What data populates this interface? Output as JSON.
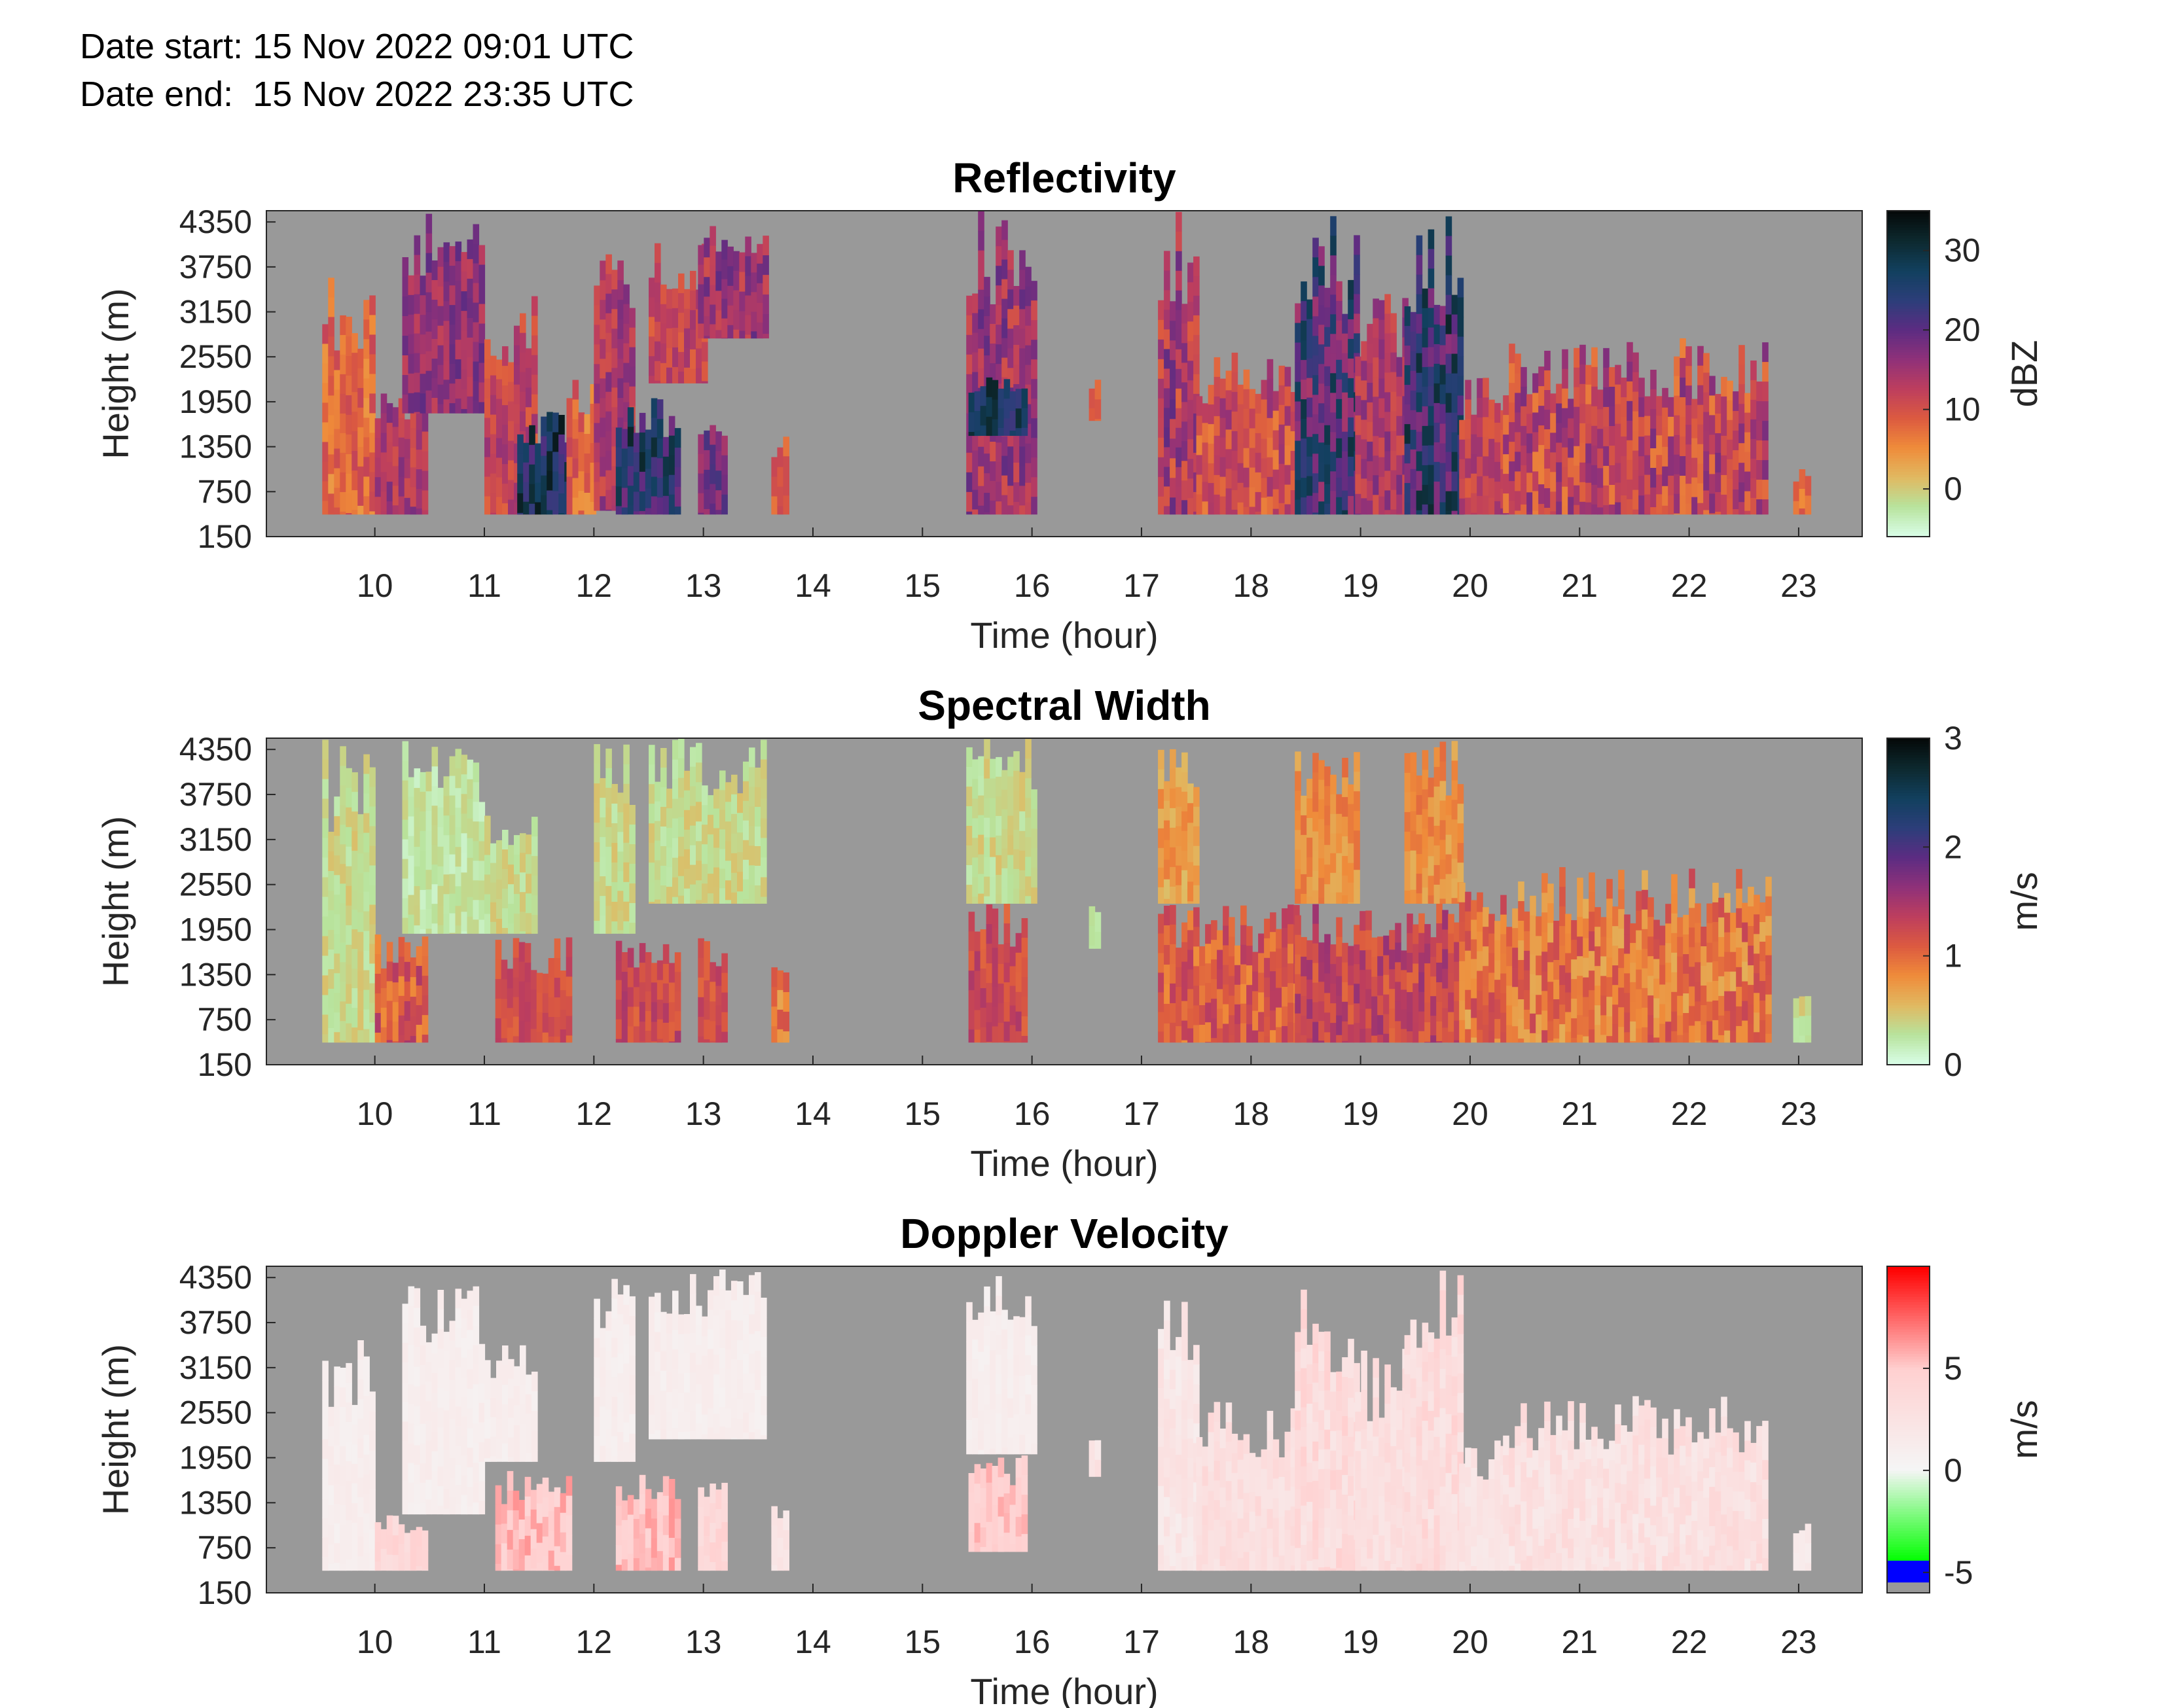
{
  "header": {
    "start_label": "Date start:",
    "start_value": "15 Nov 2022 09:01 UTC",
    "end_label": "Date end:",
    "end_value": "15 Nov 2022 23:35 UTC"
  },
  "colors": {
    "no_data": "#999999",
    "reflectivity_cmap": [
      "#d8fde6",
      "#b8e39c",
      "#e1b860",
      "#ef8b3a",
      "#dc5a40",
      "#bd3e5e",
      "#8f3179",
      "#5c2c82",
      "#2c3e7a",
      "#12405f",
      "#0d2a30",
      "#050a0a"
    ],
    "width_cmap": [
      "#d8fde6",
      "#b8e39c",
      "#e1b860",
      "#ef8b3a",
      "#dc5a40",
      "#bd3e5e",
      "#8f3179",
      "#5c2c82",
      "#2c3e7a",
      "#12405f",
      "#0d2a30",
      "#050a0a"
    ],
    "velocity_cmap": [
      "#999999",
      "#0000ff",
      "#00ff00",
      "#f5f5f5",
      "#ffd0d0",
      "#ff0000"
    ]
  },
  "chart_data": [
    {
      "type": "heatmap",
      "title": "Reflectivity",
      "xlabel": "Time (hour)",
      "ylabel": "Height (m)",
      "colorbar_label": "dBZ",
      "colorbar_ticks": [
        0,
        10,
        20,
        30
      ],
      "clim": [
        -6,
        35
      ],
      "xlim": [
        9.01,
        23.58
      ],
      "ylim": [
        150,
        4500
      ],
      "xticks": [
        10,
        11,
        12,
        13,
        14,
        15,
        16,
        17,
        18,
        19,
        20,
        21,
        22,
        23
      ],
      "yticks": [
        150,
        750,
        1350,
        1950,
        2550,
        3150,
        3750,
        4350
      ],
      "echo_blocks": [
        {
          "t": [
            9.52,
            9.98
          ],
          "h": [
            450,
            3700
          ],
          "v": [
            4,
            12
          ]
        },
        {
          "t": [
            10.0,
            10.45
          ],
          "h": [
            450,
            2100
          ],
          "v": [
            10,
            18
          ]
        },
        {
          "t": [
            10.25,
            11.0
          ],
          "h": [
            1800,
            4500
          ],
          "v": [
            12,
            20
          ]
        },
        {
          "t": [
            11.0,
            11.45
          ],
          "h": [
            450,
            3500
          ],
          "v": [
            8,
            16
          ]
        },
        {
          "t": [
            11.3,
            11.75
          ],
          "h": [
            450,
            1850
          ],
          "v": [
            20,
            35
          ]
        },
        {
          "t": [
            11.75,
            12.0
          ],
          "h": [
            450,
            2500
          ],
          "v": [
            4,
            12
          ]
        },
        {
          "t": [
            12.0,
            12.35
          ],
          "h": [
            500,
            4500
          ],
          "v": [
            10,
            18
          ]
        },
        {
          "t": [
            12.2,
            12.75
          ],
          "h": [
            450,
            2000
          ],
          "v": [
            18,
            32
          ]
        },
        {
          "t": [
            12.5,
            13.0
          ],
          "h": [
            2200,
            4100
          ],
          "v": [
            8,
            15
          ]
        },
        {
          "t": [
            12.95,
            13.2
          ],
          "h": [
            450,
            1900
          ],
          "v": [
            14,
            22
          ]
        },
        {
          "t": [
            12.95,
            13.55
          ],
          "h": [
            2800,
            4500
          ],
          "v": [
            10,
            20
          ]
        },
        {
          "t": [
            13.62,
            13.78
          ],
          "h": [
            450,
            1500
          ],
          "v": [
            6,
            12
          ]
        },
        {
          "t": [
            15.4,
            16.0
          ],
          "h": [
            450,
            4500
          ],
          "v": [
            10,
            20
          ]
        },
        {
          "t": [
            15.42,
            15.95
          ],
          "h": [
            1500,
            2300
          ],
          "v": [
            22,
            32
          ]
        },
        {
          "t": [
            16.52,
            16.58
          ],
          "h": [
            1700,
            2300
          ],
          "v": [
            6,
            10
          ]
        },
        {
          "t": [
            17.15,
            17.5
          ],
          "h": [
            450,
            4500
          ],
          "v": [
            8,
            20
          ]
        },
        {
          "t": [
            17.5,
            18.4
          ],
          "h": [
            450,
            2700
          ],
          "v": [
            6,
            16
          ]
        },
        {
          "t": [
            18.4,
            18.95
          ],
          "h": [
            450,
            4500
          ],
          "v": [
            14,
            30
          ]
        },
        {
          "t": [
            18.95,
            19.4
          ],
          "h": [
            450,
            3500
          ],
          "v": [
            10,
            18
          ]
        },
        {
          "t": [
            19.4,
            19.9
          ],
          "h": [
            450,
            4500
          ],
          "v": [
            16,
            32
          ]
        },
        {
          "t": [
            19.9,
            20.3
          ],
          "h": [
            450,
            2300
          ],
          "v": [
            8,
            16
          ]
        },
        {
          "t": [
            20.3,
            22.7
          ],
          "h": [
            450,
            2800
          ],
          "v": [
            6,
            18
          ]
        },
        {
          "t": [
            22.95,
            23.1
          ],
          "h": [
            450,
            1100
          ],
          "v": [
            4,
            10
          ]
        }
      ]
    },
    {
      "type": "heatmap",
      "title": "Spectral Width",
      "xlabel": "Time (hour)",
      "ylabel": "Height (m)",
      "colorbar_label": "m/s",
      "colorbar_ticks": [
        0,
        1,
        2,
        3
      ],
      "clim": [
        0,
        3
      ],
      "xlim": [
        9.01,
        23.58
      ],
      "ylim": [
        150,
        4500
      ],
      "xticks": [
        10,
        11,
        12,
        13,
        14,
        15,
        16,
        17,
        18,
        19,
        20,
        21,
        22,
        23
      ],
      "yticks": [
        150,
        750,
        1350,
        1950,
        2550,
        3150,
        3750,
        4350
      ],
      "echo_blocks": [
        {
          "t": [
            9.52,
            9.98
          ],
          "h": [
            450,
            4500
          ],
          "v": [
            0.2,
            0.5
          ]
        },
        {
          "t": [
            10.0,
            10.45
          ],
          "h": [
            450,
            1900
          ],
          "v": [
            0.8,
            1.5
          ]
        },
        {
          "t": [
            10.25,
            11.0
          ],
          "h": [
            1900,
            4500
          ],
          "v": [
            0.1,
            0.4
          ]
        },
        {
          "t": [
            11.0,
            11.45
          ],
          "h": [
            1900,
            3500
          ],
          "v": [
            0.2,
            0.5
          ]
        },
        {
          "t": [
            11.1,
            11.75
          ],
          "h": [
            450,
            1850
          ],
          "v": [
            1.0,
            1.4
          ]
        },
        {
          "t": [
            12.0,
            12.35
          ],
          "h": [
            1900,
            4500
          ],
          "v": [
            0.2,
            0.5
          ]
        },
        {
          "t": [
            12.2,
            12.75
          ],
          "h": [
            450,
            1850
          ],
          "v": [
            1.0,
            1.5
          ]
        },
        {
          "t": [
            12.5,
            13.55
          ],
          "h": [
            2300,
            4500
          ],
          "v": [
            0.2,
            0.5
          ]
        },
        {
          "t": [
            12.95,
            13.2
          ],
          "h": [
            450,
            1900
          ],
          "v": [
            1.0,
            1.4
          ]
        },
        {
          "t": [
            13.62,
            13.78
          ],
          "h": [
            450,
            1500
          ],
          "v": [
            0.6,
            1.2
          ]
        },
        {
          "t": [
            15.4,
            16.0
          ],
          "h": [
            2300,
            4500
          ],
          "v": [
            0.2,
            0.5
          ]
        },
        {
          "t": [
            15.42,
            15.95
          ],
          "h": [
            450,
            2300
          ],
          "v": [
            1.0,
            1.5
          ]
        },
        {
          "t": [
            16.52,
            16.58
          ],
          "h": [
            1700,
            2300
          ],
          "v": [
            0.2,
            0.3
          ]
        },
        {
          "t": [
            17.15,
            17.5
          ],
          "h": [
            2300,
            4500
          ],
          "v": [
            0.5,
            0.9
          ]
        },
        {
          "t": [
            17.15,
            18.4
          ],
          "h": [
            450,
            2300
          ],
          "v": [
            0.8,
            1.4
          ]
        },
        {
          "t": [
            18.4,
            18.95
          ],
          "h": [
            2300,
            4500
          ],
          "v": [
            0.6,
            1.0
          ]
        },
        {
          "t": [
            18.4,
            19.9
          ],
          "h": [
            450,
            2300
          ],
          "v": [
            1.0,
            1.6
          ]
        },
        {
          "t": [
            19.4,
            19.9
          ],
          "h": [
            2300,
            4500
          ],
          "v": [
            0.6,
            1.0
          ]
        },
        {
          "t": [
            19.9,
            22.7
          ],
          "h": [
            450,
            2800
          ],
          "v": [
            0.6,
            1.3
          ]
        },
        {
          "t": [
            22.95,
            23.1
          ],
          "h": [
            450,
            1100
          ],
          "v": [
            0.2,
            0.5
          ]
        }
      ]
    },
    {
      "type": "heatmap",
      "title": "Doppler Velocity",
      "xlabel": "Time (hour)",
      "ylabel": "Height (m)",
      "colorbar_label": "m/s",
      "colorbar_ticks": [
        -5,
        0,
        5
      ],
      "clim": [
        -6,
        10
      ],
      "xlim": [
        9.01,
        23.58
      ],
      "ylim": [
        150,
        4500
      ],
      "xticks": [
        10,
        11,
        12,
        13,
        14,
        15,
        16,
        17,
        18,
        19,
        20,
        21,
        22,
        23
      ],
      "yticks": [
        150,
        750,
        1350,
        1950,
        2550,
        3150,
        3750,
        4350
      ],
      "echo_blocks": [
        {
          "t": [
            9.52,
            9.98
          ],
          "h": [
            450,
            3700
          ],
          "v": [
            0.5,
            1.5
          ]
        },
        {
          "t": [
            10.0,
            10.45
          ],
          "h": [
            450,
            1200
          ],
          "v": [
            3,
            5
          ]
        },
        {
          "t": [
            10.25,
            11.0
          ],
          "h": [
            1200,
            4500
          ],
          "v": [
            0.5,
            1.5
          ]
        },
        {
          "t": [
            11.0,
            11.45
          ],
          "h": [
            1900,
            3500
          ],
          "v": [
            0.5,
            1.5
          ]
        },
        {
          "t": [
            11.1,
            11.75
          ],
          "h": [
            450,
            1800
          ],
          "v": [
            4,
            6.5
          ]
        },
        {
          "t": [
            12.0,
            12.35
          ],
          "h": [
            1900,
            4500
          ],
          "v": [
            0.5,
            1.5
          ]
        },
        {
          "t": [
            12.2,
            12.75
          ],
          "h": [
            450,
            1800
          ],
          "v": [
            4,
            6.5
          ]
        },
        {
          "t": [
            12.5,
            13.55
          ],
          "h": [
            2200,
            4500
          ],
          "v": [
            0.5,
            1.5
          ]
        },
        {
          "t": [
            12.95,
            13.2
          ],
          "h": [
            450,
            1800
          ],
          "v": [
            3,
            5
          ]
        },
        {
          "t": [
            13.62,
            13.78
          ],
          "h": [
            450,
            1500
          ],
          "v": [
            1.5,
            3
          ]
        },
        {
          "t": [
            15.4,
            16.0
          ],
          "h": [
            2000,
            4500
          ],
          "v": [
            0.5,
            1.5
          ]
        },
        {
          "t": [
            15.42,
            15.95
          ],
          "h": [
            700,
            2000
          ],
          "v": [
            4,
            6
          ]
        },
        {
          "t": [
            16.52,
            16.58
          ],
          "h": [
            1700,
            2300
          ],
          "v": [
            1.5,
            3
          ]
        },
        {
          "t": [
            17.15,
            17.5
          ],
          "h": [
            450,
            4500
          ],
          "v": [
            1,
            3
          ]
        },
        {
          "t": [
            17.5,
            18.4
          ],
          "h": [
            450,
            2700
          ],
          "v": [
            2,
            4
          ]
        },
        {
          "t": [
            18.4,
            18.95
          ],
          "h": [
            450,
            4500
          ],
          "v": [
            2,
            5
          ]
        },
        {
          "t": [
            18.95,
            19.4
          ],
          "h": [
            450,
            3500
          ],
          "v": [
            2,
            4
          ]
        },
        {
          "t": [
            19.4,
            19.9
          ],
          "h": [
            450,
            4500
          ],
          "v": [
            2,
            5
          ]
        },
        {
          "t": [
            19.9,
            20.3
          ],
          "h": [
            450,
            2300
          ],
          "v": [
            1.5,
            3
          ]
        },
        {
          "t": [
            20.3,
            22.7
          ],
          "h": [
            450,
            2800
          ],
          "v": [
            1.5,
            4
          ]
        },
        {
          "t": [
            22.95,
            23.1
          ],
          "h": [
            450,
            1100
          ],
          "v": [
            1,
            2
          ]
        }
      ]
    }
  ]
}
